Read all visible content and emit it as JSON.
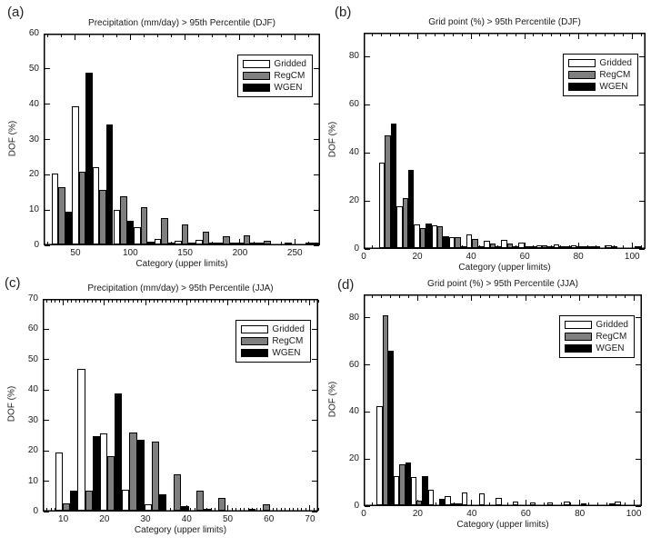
{
  "figure": {
    "background": "#ffffff",
    "text_color": "#1a1a1a",
    "bar_gray": "#7f7f7f",
    "bar_black": "#000000",
    "bar_white": "#ffffff",
    "legend_entries": [
      "Gridded",
      "RegCM",
      "WGEN"
    ]
  },
  "chart_data": [
    {
      "id": "a",
      "panel_label": "(a)",
      "type": "bar",
      "title": "Precipitation (mm/day) > 95th Percentile (DJF)",
      "xlabel": "Category (upper limits)",
      "ylabel": "DOF (%)",
      "xlim": [
        21,
        273
      ],
      "ylim": [
        0,
        60
      ],
      "xticks": [
        50,
        100,
        150,
        200,
        250
      ],
      "yticks": [
        0,
        10,
        20,
        30,
        40,
        50,
        60
      ],
      "x_minor_step": 12.5,
      "grid": false,
      "legend_position": "upper-right",
      "categories": [
        37.5,
        56.3,
        75,
        93.8,
        112.5,
        131.3,
        150,
        168.8,
        187.5,
        206.3,
        225,
        243.8,
        262.5
      ],
      "series": [
        {
          "name": "Gridded",
          "fill": "#ffffff",
          "edge": "#000000",
          "values": [
            20.1,
            39.1,
            22.0,
            9.7,
            5.0,
            1.5,
            1.0,
            1.2,
            0.2,
            0.3,
            0.2,
            0,
            0
          ]
        },
        {
          "name": "RegCM",
          "fill": "#7f7f7f",
          "edge": "#000000",
          "values": [
            16.1,
            20.7,
            15.5,
            13.6,
            10.5,
            7.5,
            5.7,
            3.5,
            2.4,
            2.5,
            1.1,
            0.5,
            0.3
          ]
        },
        {
          "name": "WGEN",
          "fill": "#000000",
          "edge": "#000000",
          "values": [
            9.4,
            48.8,
            34.1,
            6.7,
            0.9,
            0.3,
            0.2,
            0.1,
            0.5,
            0.1,
            0,
            0,
            0.1
          ]
        }
      ]
    },
    {
      "id": "b",
      "panel_label": "(b)",
      "type": "bar",
      "title": "Grid point (%) > 95th Percentile (DJF)",
      "xlabel": "Category (upper limits)",
      "ylabel": "DOF (%)",
      "xlim": [
        0,
        105
      ],
      "ylim": [
        0,
        90
      ],
      "xticks": [
        0,
        20,
        40,
        60,
        80,
        100
      ],
      "yticks": [
        0,
        20,
        40,
        60,
        80
      ],
      "x_minor_step": 3.333,
      "grid": false,
      "legend_position": "upper-right",
      "categories": [
        9,
        15.5,
        22,
        28.5,
        35,
        41.5,
        48,
        54.5,
        61,
        67.5,
        74,
        80.5,
        87,
        93.5,
        100
      ],
      "series": [
        {
          "name": "Gridded",
          "fill": "#ffffff",
          "edge": "#000000",
          "values": [
            35.6,
            17.3,
            10.0,
            9.5,
            4.7,
            5.5,
            2.9,
            3.4,
            2.1,
            1.3,
            1.5,
            1.2,
            0.8,
            1.1,
            0
          ]
        },
        {
          "name": "RegCM",
          "fill": "#7f7f7f",
          "edge": "#000000",
          "values": [
            46.9,
            20.7,
            8.5,
            9.0,
            4.4,
            3.9,
            2.0,
            1.8,
            0.6,
            1.2,
            0.6,
            0.9,
            0.2,
            0.2,
            0
          ]
        },
        {
          "name": "WGEN",
          "fill": "#000000",
          "edge": "#000000",
          "values": [
            51.9,
            32.7,
            10.3,
            4.8,
            0.5,
            0.2,
            0.1,
            0.1,
            0.2,
            0.1,
            0.1,
            0.1,
            0,
            0,
            0.5
          ]
        }
      ]
    },
    {
      "id": "c",
      "panel_label": "(c)",
      "type": "bar",
      "title": "Precipitation (mm/day) > 95th Percentile (JJA)",
      "xlabel": "Category (upper limits)",
      "ylabel": "DOF (%)",
      "xlim": [
        5,
        72
      ],
      "ylim": [
        0,
        70
      ],
      "xticks": [
        10,
        20,
        30,
        40,
        50,
        60,
        70
      ],
      "yticks": [
        0,
        10,
        20,
        30,
        40,
        50,
        60,
        70
      ],
      "x_minor_step": 1,
      "grid": false,
      "legend_position": "upper-right",
      "categories": [
        10.8,
        16.2,
        21.6,
        27,
        32.4,
        37.8,
        43.2,
        48.6,
        54,
        59.4,
        64.8
      ],
      "series": [
        {
          "name": "Gridded",
          "fill": "#ffffff",
          "edge": "#000000",
          "values": [
            19.2,
            46.6,
            25.5,
            6.8,
            2.1,
            0,
            0,
            0,
            0,
            0,
            0
          ]
        },
        {
          "name": "RegCM",
          "fill": "#7f7f7f",
          "edge": "#000000",
          "values": [
            2.3,
            6.7,
            18.1,
            25.8,
            22.8,
            11.9,
            6.7,
            4.1,
            0,
            2.0,
            0
          ]
        },
        {
          "name": "WGEN",
          "fill": "#000000",
          "edge": "#000000",
          "values": [
            6.7,
            24.4,
            38.6,
            23.2,
            5.5,
            1.4,
            0.3,
            0,
            0.2,
            0,
            0
          ]
        }
      ]
    },
    {
      "id": "d",
      "panel_label": "(d)",
      "type": "bar",
      "title": "Grid point (%) > 95th Percentile (JJA)",
      "xlabel": "Category (upper limits)",
      "ylabel": "DOF (%)",
      "xlim": [
        0,
        103
      ],
      "ylim": [
        0,
        90
      ],
      "xticks": [
        0,
        20,
        40,
        60,
        80,
        100
      ],
      "yticks": [
        0,
        20,
        40,
        60,
        80
      ],
      "x_minor_step": 3.333,
      "grid": false,
      "legend_position": "upper-right",
      "categories": [
        8,
        14.3,
        20.6,
        26.9,
        33.2,
        39.5,
        45.8,
        52.1,
        58.4,
        64.7,
        71,
        77.3,
        83.6,
        89.9,
        96.2
      ],
      "series": [
        {
          "name": "Gridded",
          "fill": "#ffffff",
          "edge": "#000000",
          "values": [
            42.2,
            12.2,
            12.1,
            6.4,
            3.8,
            5.5,
            5.2,
            3.1,
            1.4,
            1.0,
            1.3,
            1.6,
            0.8,
            0,
            1.6
          ]
        },
        {
          "name": "RegCM",
          "fill": "#7f7f7f",
          "edge": "#000000",
          "values": [
            80.9,
            17.3,
            1.8,
            0,
            0.3,
            0,
            0,
            0,
            0,
            0,
            0,
            0,
            0,
            0,
            0
          ]
        },
        {
          "name": "WGEN",
          "fill": "#000000",
          "edge": "#000000",
          "values": [
            65.8,
            18.3,
            12.5,
            2.9,
            0.3,
            0,
            0,
            0,
            0,
            0,
            0,
            0,
            0,
            0.5,
            0
          ]
        }
      ]
    }
  ]
}
